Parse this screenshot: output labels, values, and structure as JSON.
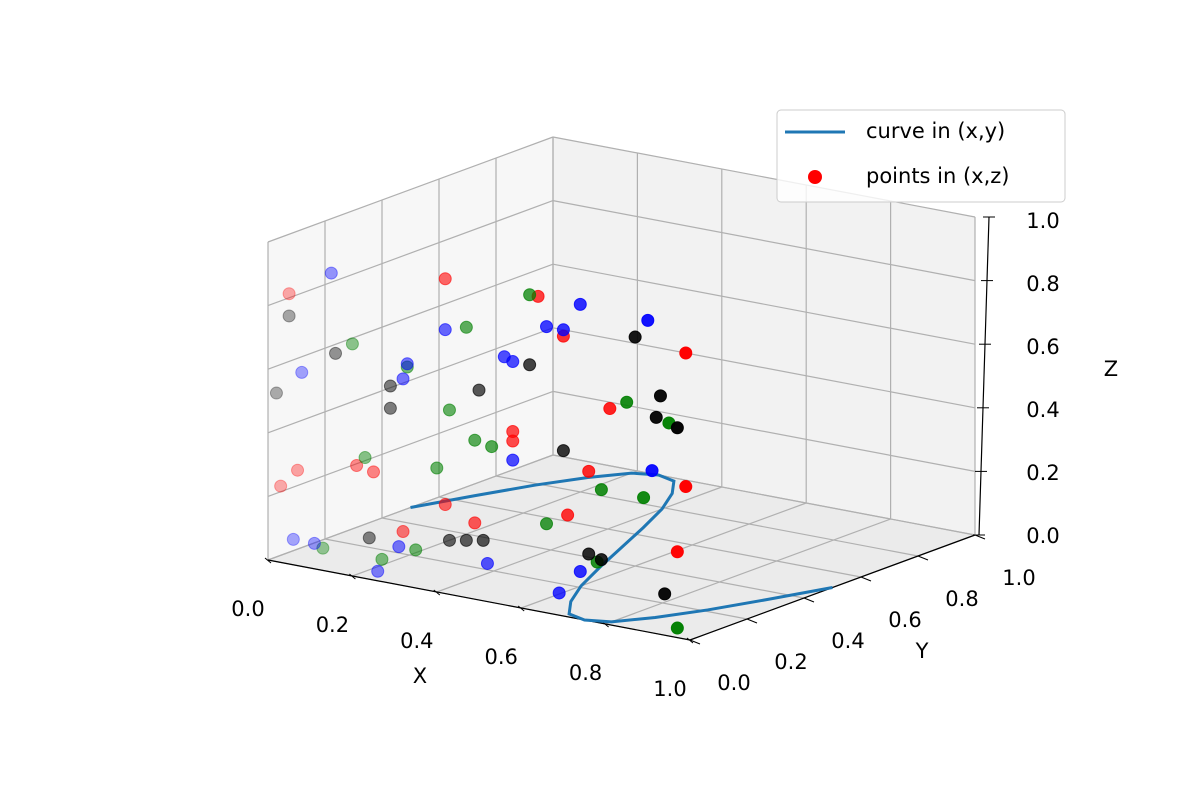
{
  "chart_data": {
    "type": "3d",
    "xlabel": "X",
    "ylabel": "Y",
    "zlabel": "Z",
    "xlim": [
      0,
      1
    ],
    "ylim": [
      0,
      1
    ],
    "zlim": [
      0,
      1
    ],
    "xticks": [
      {
        "value": 0,
        "label": "0.0"
      },
      0.2,
      0.4,
      0.6,
      0.8,
      {
        "value": 1,
        "label": "1.0"
      }
    ],
    "yticks": [
      {
        "value": 0,
        "label": "0.0"
      },
      0.2,
      0.4,
      0.6,
      0.8,
      {
        "value": 1,
        "label": "1.0"
      }
    ],
    "zticks": [
      {
        "value": 0,
        "label": "0.0"
      },
      0.2,
      0.4,
      0.6,
      0.8,
      {
        "value": 1,
        "label": "1.0"
      }
    ],
    "grid": true,
    "legend_loc": "upper right",
    "series": [
      {
        "name": "curve in (x,y)",
        "kind": "line",
        "color": "#1f77b4",
        "x": [
          0,
          0.05,
          0.1,
          0.15,
          0.2,
          0.25,
          0.3,
          0.35,
          0.4,
          0.45,
          0.5,
          0.55,
          0.6,
          0.65,
          0.7,
          0.75,
          0.8,
          0.85,
          0.9,
          0.95,
          1
        ],
        "y": [
          0.5,
          0.65,
          0.79,
          0.9,
          0.98,
          1.0,
          0.98,
          0.9,
          0.79,
          0.65,
          0.5,
          0.35,
          0.21,
          0.1,
          0.02,
          0.0,
          0.02,
          0.1,
          0.21,
          0.35,
          0.5
        ]
      },
      {
        "name": "points in (x,z)",
        "kind": "scatter",
        "groups": [
          {
            "color": "#ff0000",
            "x": [
              0.05,
              0.42,
              0.64,
              0.7,
              0.99,
              0.81,
              0.58,
              0.58,
              0.07,
              0.21,
              0.25,
              0.03,
              0.76,
              0.99,
              0.42,
              0.32,
              0.49,
              0.71,
              0.97
            ],
            "z": [
              0.85,
              0.99,
              0.99,
              0.88,
              0.9,
              0.68,
              0.55,
              0.52,
              0.3,
              0.35,
              0.34,
              0.24,
              0.47,
              0.48,
              0.28,
              0.17,
              0.24,
              0.32,
              0.27
            ]
          },
          {
            "color": "#008000",
            "x": [
              0.62,
              0.47,
              0.2,
              0.33,
              0.85,
              0.95,
              0.43,
              0.49,
              0.53,
              0.23,
              0.4,
              0.79,
              0.89,
              0.66,
              0.35,
              0.27,
              0.13,
              0.78,
              0.97
            ],
            "z": [
              0.99,
              0.85,
              0.73,
              0.69,
              0.71,
              0.67,
              0.58,
              0.5,
              0.49,
              0.38,
              0.39,
              0.42,
              0.42,
              0.28,
              0.12,
              0.07,
              0.07,
              0.19,
              0.03
            ]
          },
          {
            "color": "#0000ff",
            "x": [
              0.15,
              0.74,
              0.9,
              0.66,
              0.7,
              0.42,
              0.56,
              0.58,
              0.33,
              0.32,
              0.08,
              0.58,
              0.91,
              0.06,
              0.11,
              0.31,
              0.52,
              0.26,
              0.74,
              0.69
            ],
            "z": [
              0.94,
              0.99,
              0.98,
              0.9,
              0.9,
              0.83,
              0.78,
              0.77,
              0.7,
              0.65,
              0.61,
              0.46,
              0.51,
              0.08,
              0.08,
              0.12,
              0.12,
              0.03,
              0.15,
              0.07
            ]
          },
          {
            "color": "#000000",
            "x": [
              0.87,
              0.05,
              0.16,
              0.62,
              0.29,
              0.5,
              0.93,
              0.29,
              0.92,
              0.97,
              0.02,
              0.7,
              0.43,
              0.47,
              0.51,
              0.24,
              0.76,
              0.79,
              0.94
            ],
            "z": [
              0.92,
              0.78,
              0.69,
              0.77,
              0.62,
              0.66,
              0.75,
              0.55,
              0.68,
              0.66,
              0.53,
              0.52,
              0.17,
              0.18,
              0.19,
              0.13,
              0.21,
              0.2,
              0.13
            ]
          }
        ]
      }
    ]
  }
}
